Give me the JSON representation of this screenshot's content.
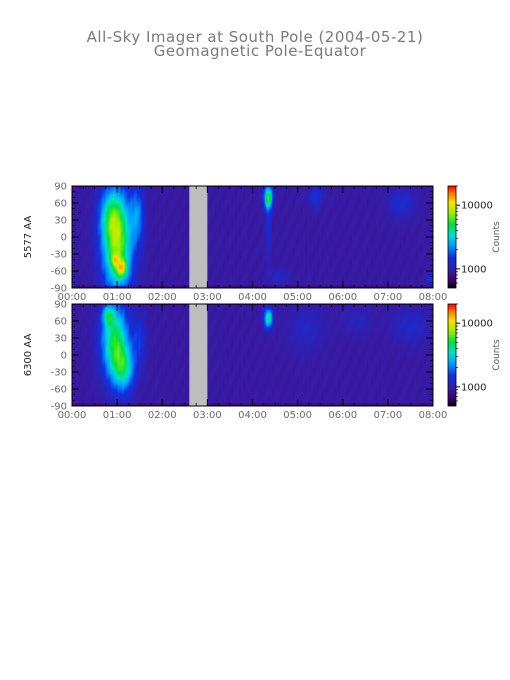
{
  "title": "All-Sky Imager at South Pole (2004-05-21)",
  "subtitle": "Geomagnetic Pole-Equator",
  "chart_data": [
    {
      "type": "heatmap",
      "ylabel": "5577 AA",
      "x_ticks": [
        "00:00",
        "01:00",
        "02:00",
        "03:00",
        "04:00",
        "05:00",
        "06:00",
        "07:00",
        "08:00"
      ],
      "y_ticks": [
        "90",
        "60",
        "30",
        "0",
        "-30",
        "-60",
        "-90"
      ],
      "y_tick_values": [
        90,
        60,
        30,
        0,
        -30,
        -60,
        -90
      ],
      "xlim_hours": [
        0,
        8
      ],
      "ylim": [
        -90,
        90
      ],
      "data_gap_hours": [
        2.6,
        3.0
      ],
      "colorbar": {
        "label": "Counts",
        "scale": "log",
        "ticks": [
          "10000",
          "1000"
        ],
        "tick_values": [
          10000,
          1000
        ],
        "range": [
          500,
          20000
        ]
      },
      "blobs": [
        {
          "t": 1.0,
          "lat": -10,
          "dt": 0.33,
          "dlat": 85,
          "level": 0.55
        },
        {
          "t": 0.85,
          "lat": 40,
          "dt": 0.25,
          "dlat": 45,
          "level": 0.2
        },
        {
          "t": 1.1,
          "lat": -55,
          "dt": 0.12,
          "dlat": 15,
          "level": 0.35
        },
        {
          "t": 0.95,
          "lat": -40,
          "dt": 0.08,
          "dlat": 10,
          "level": 0.2
        },
        {
          "t": 1.45,
          "lat": 40,
          "dt": 0.15,
          "dlat": 50,
          "level": 0.2
        },
        {
          "t": 4.35,
          "lat": 70,
          "dt": 0.1,
          "dlat": 20,
          "level": 0.45
        },
        {
          "t": 4.35,
          "lat": 20,
          "dt": 0.06,
          "dlat": 60,
          "level": 0.12
        },
        {
          "t": 5.4,
          "lat": 70,
          "dt": 0.15,
          "dlat": 20,
          "level": 0.12
        },
        {
          "t": 7.3,
          "lat": 60,
          "dt": 0.3,
          "dlat": 25,
          "level": 0.1
        },
        {
          "t": 7.95,
          "lat": -75,
          "dt": 0.1,
          "dlat": 10,
          "level": 0.12
        },
        {
          "t": 4.6,
          "lat": -70,
          "dt": 0.25,
          "dlat": 15,
          "level": 0.07
        }
      ]
    },
    {
      "type": "heatmap",
      "ylabel": "6300 AA",
      "x_ticks": [
        "00:00",
        "01:00",
        "02:00",
        "03:00",
        "04:00",
        "05:00",
        "06:00",
        "07:00",
        "08:00"
      ],
      "y_ticks": [
        "90",
        "60",
        "30",
        "0",
        "-30",
        "-60",
        "-90"
      ],
      "y_tick_values": [
        90,
        60,
        30,
        0,
        -30,
        -60,
        -90
      ],
      "xlim_hours": [
        0,
        8
      ],
      "ylim": [
        -90,
        90
      ],
      "data_gap_hours": [
        2.6,
        3.0
      ],
      "colorbar": {
        "label": "Counts",
        "scale": "log",
        "ticks": [
          "10000",
          "1000"
        ],
        "tick_values": [
          10000,
          1000
        ],
        "range": [
          500,
          20000
        ]
      },
      "blobs": [
        {
          "t": 0.95,
          "lat": 25,
          "dt": 0.3,
          "dlat": 65,
          "level": 0.45
        },
        {
          "t": 1.15,
          "lat": -25,
          "dt": 0.25,
          "dlat": 40,
          "level": 0.3
        },
        {
          "t": 0.8,
          "lat": 70,
          "dt": 0.12,
          "dlat": 18,
          "level": 0.25
        },
        {
          "t": 1.5,
          "lat": 30,
          "dt": 0.15,
          "dlat": 40,
          "level": 0.12
        },
        {
          "t": 4.35,
          "lat": 65,
          "dt": 0.1,
          "dlat": 18,
          "level": 0.4
        },
        {
          "t": 5.2,
          "lat": 45,
          "dt": 0.4,
          "dlat": 40,
          "level": 0.07
        },
        {
          "t": 6.3,
          "lat": 60,
          "dt": 0.3,
          "dlat": 25,
          "level": 0.06
        },
        {
          "t": 7.5,
          "lat": 50,
          "dt": 0.45,
          "dlat": 30,
          "level": 0.08
        }
      ]
    }
  ]
}
